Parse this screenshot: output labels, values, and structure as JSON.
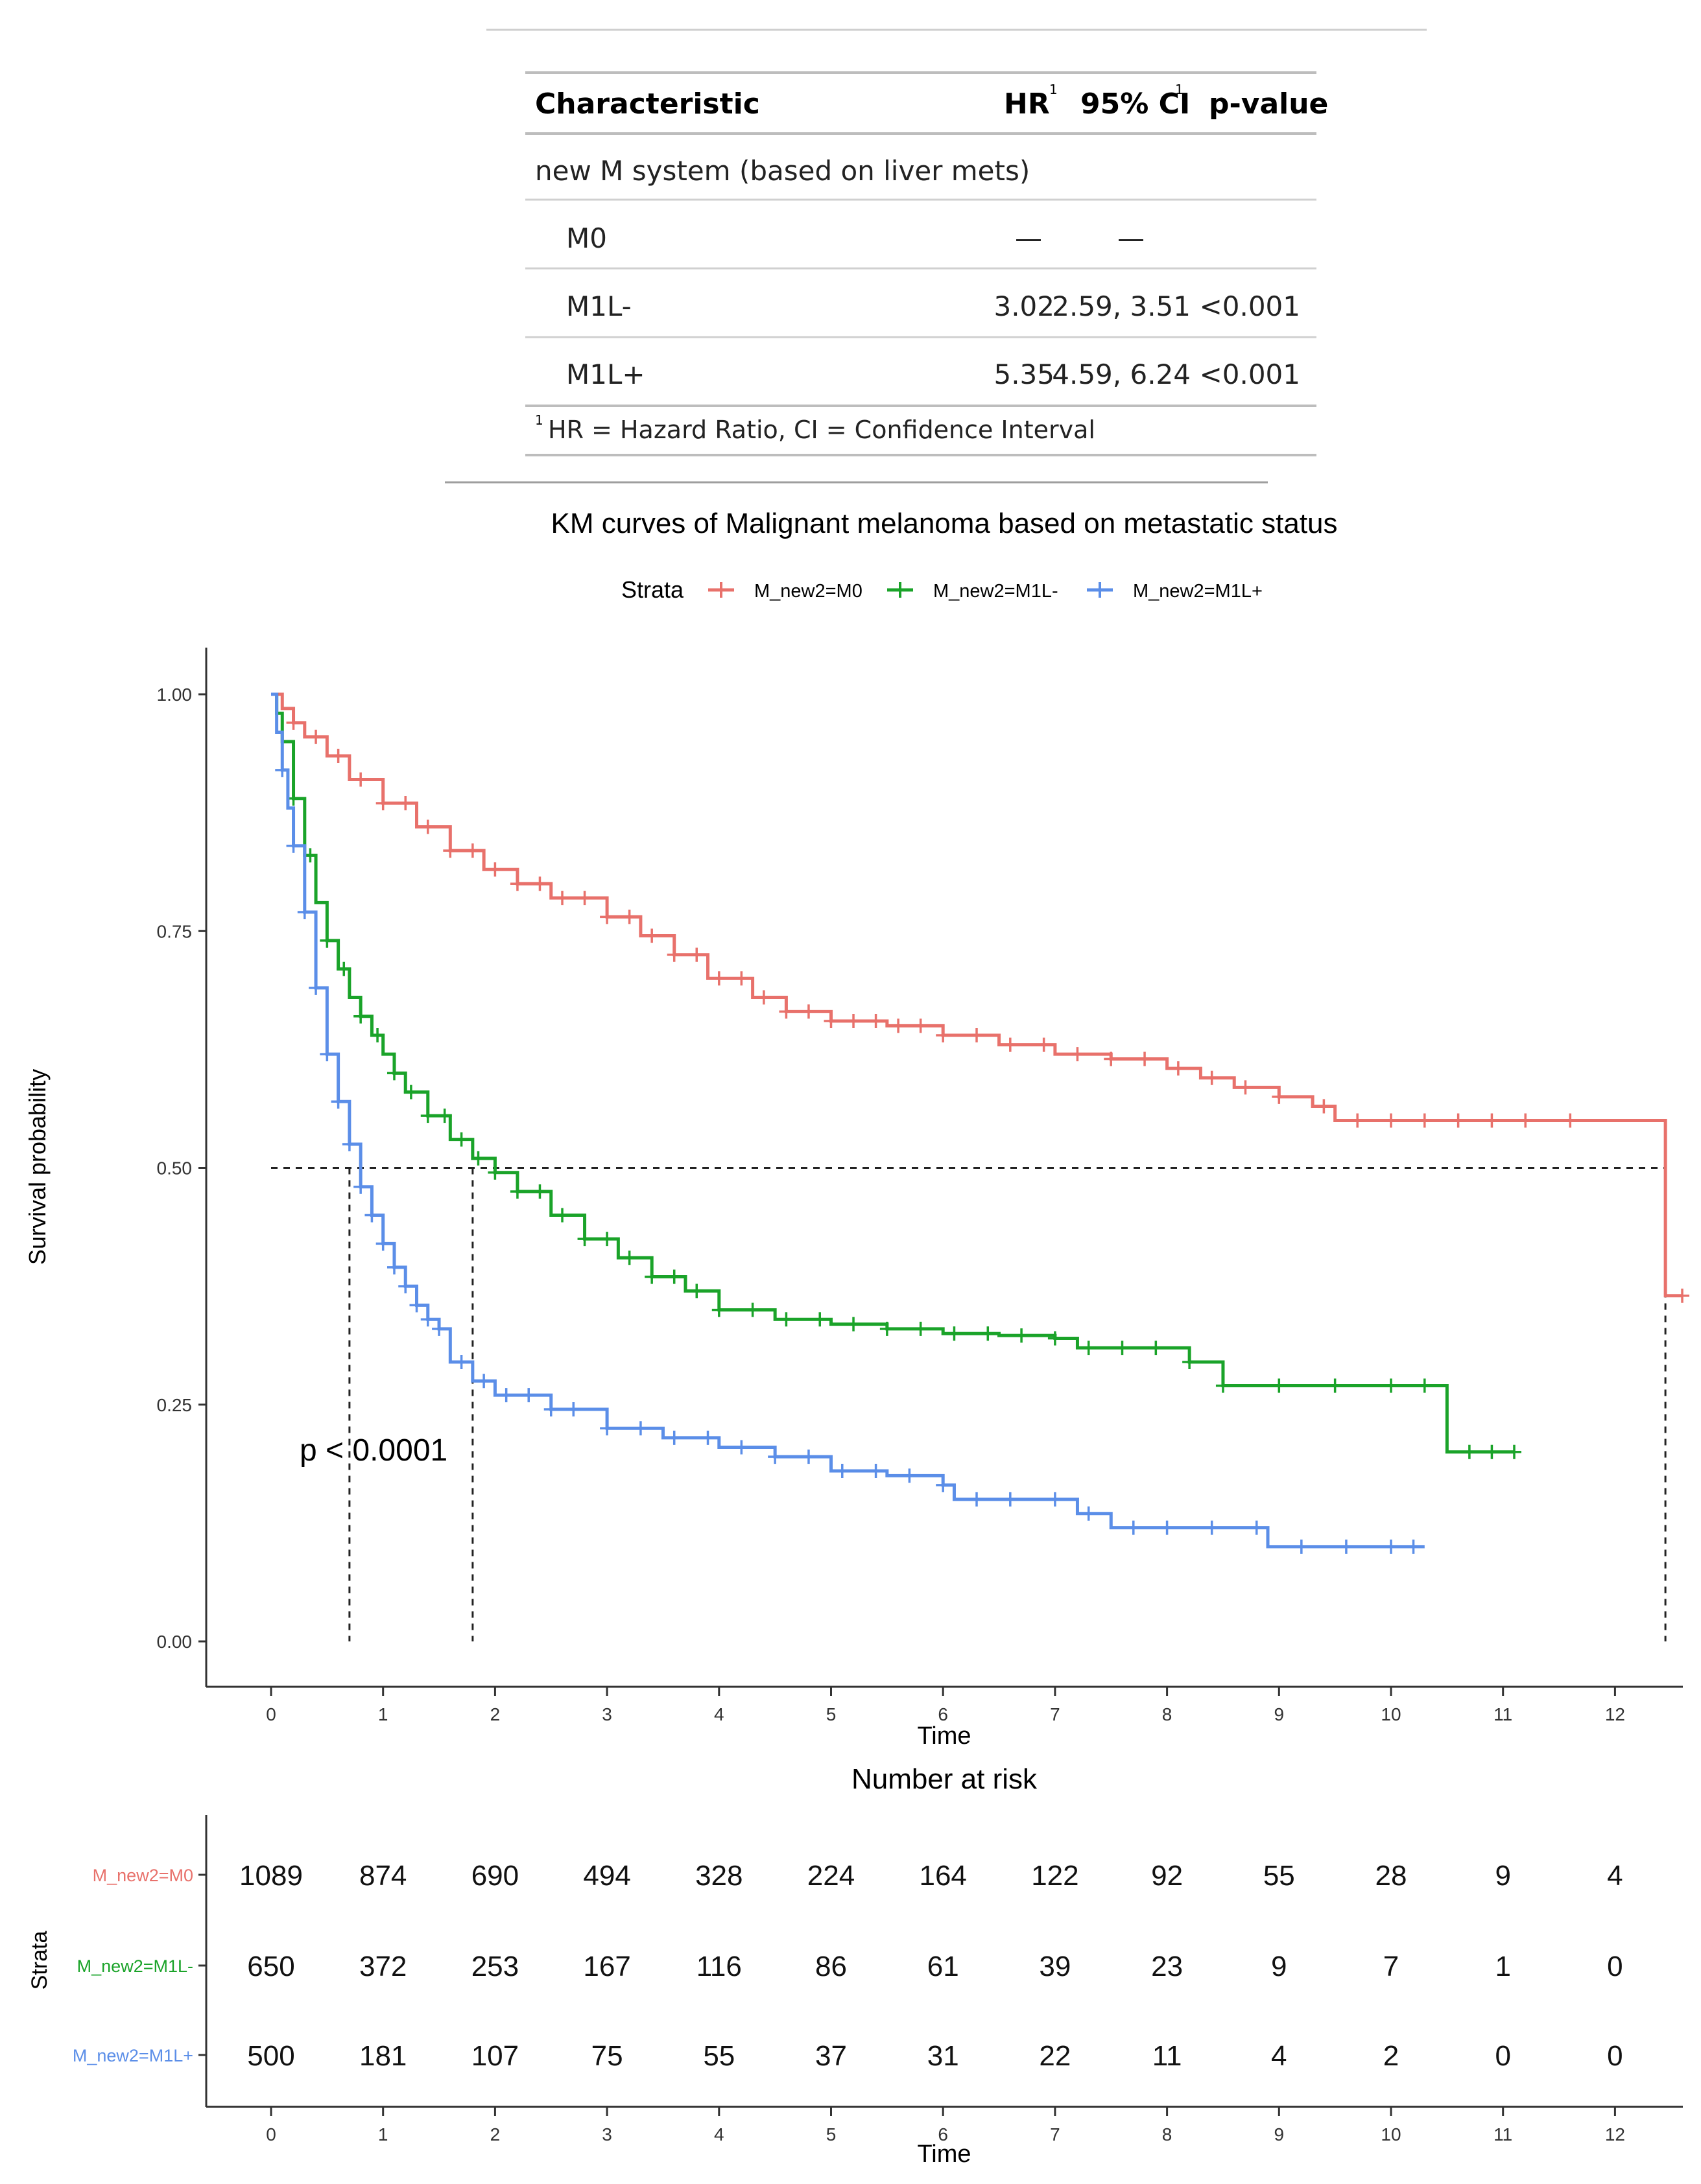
{
  "table": {
    "headers": {
      "characteristic": "Characteristic",
      "hr": "HR",
      "ci": "95% CI",
      "pvalue": "p-value",
      "footnote_mark": "1"
    },
    "group_label": "new M system (based on liver mets)",
    "rows": [
      {
        "label": "M0",
        "hr": "—",
        "ci": "—",
        "p": ""
      },
      {
        "label": "M1L-",
        "hr": "3.02",
        "ci": "2.59, 3.51",
        "p": "<0.001"
      },
      {
        "label": "M1L+",
        "hr": "5.35",
        "ci": "4.59, 6.24",
        "p": "<0.001"
      }
    ],
    "footnote": "HR = Hazard Ratio, CI = Confidence Interval"
  },
  "colors": {
    "M0": "#e8716b",
    "M1Lminus": "#1aa329",
    "M1Lplus": "#5b8ee8",
    "axis": "#333333",
    "grid_rule": "#bdbdbd"
  },
  "chart_data": [
    {
      "type": "line",
      "subtype": "kaplan-meier step",
      "title": "KM curves of Malignant melanoma based on metastatic status",
      "legend_title": "Strata",
      "legend_position": "top",
      "xlabel": "Time",
      "ylabel": "Survival probability",
      "xlim": [
        0,
        12.5
      ],
      "ylim": [
        0,
        1
      ],
      "xticks": [
        0,
        1,
        2,
        3,
        4,
        5,
        6,
        7,
        8,
        9,
        10,
        11,
        12
      ],
      "yticks": [
        0.0,
        0.25,
        0.5,
        0.75,
        1.0
      ],
      "ytick_labels": [
        "0.00",
        "0.25",
        "0.50",
        "0.75",
        "1.00"
      ],
      "annotation": "p < 0.0001",
      "median_line_y": 0.5,
      "medians": [
        0.7,
        1.8,
        12.45
      ],
      "series": [
        {
          "name": "M_new2=M0",
          "color": "#e8716b",
          "x": [
            0,
            0.1,
            0.2,
            0.3,
            0.5,
            0.7,
            1.0,
            1.3,
            1.6,
            1.9,
            2.2,
            2.5,
            3.0,
            3.3,
            3.6,
            3.9,
            4.3,
            4.6,
            5.0,
            5.5,
            6.0,
            6.5,
            7.0,
            7.5,
            8.0,
            8.3,
            8.6,
            9.0,
            9.3,
            9.5,
            10.0,
            11.0,
            12.0,
            12.45,
            12.6
          ],
          "y": [
            1.0,
            0.985,
            0.97,
            0.955,
            0.935,
            0.91,
            0.885,
            0.86,
            0.835,
            0.815,
            0.8,
            0.785,
            0.765,
            0.745,
            0.725,
            0.7,
            0.68,
            0.665,
            0.655,
            0.65,
            0.64,
            0.63,
            0.62,
            0.615,
            0.605,
            0.595,
            0.585,
            0.575,
            0.565,
            0.55,
            0.55,
            0.55,
            0.55,
            0.365,
            0.365
          ],
          "censor_x": [
            0.2,
            0.4,
            0.6,
            0.8,
            1.0,
            1.2,
            1.4,
            1.6,
            1.8,
            2.0,
            2.2,
            2.4,
            2.6,
            2.8,
            3.0,
            3.2,
            3.4,
            3.6,
            3.8,
            4.0,
            4.2,
            4.4,
            4.6,
            4.8,
            5.0,
            5.2,
            5.4,
            5.6,
            5.8,
            6.0,
            6.3,
            6.6,
            6.9,
            7.2,
            7.5,
            7.8,
            8.1,
            8.4,
            8.7,
            9.0,
            9.4,
            9.7,
            10.0,
            10.3,
            10.6,
            10.9,
            11.2,
            11.6,
            12.6
          ]
        },
        {
          "name": "M_new2=M1L-",
          "color": "#1aa329",
          "x": [
            0,
            0.05,
            0.1,
            0.2,
            0.3,
            0.4,
            0.5,
            0.6,
            0.7,
            0.8,
            0.9,
            1.0,
            1.1,
            1.2,
            1.4,
            1.6,
            1.8,
            2.0,
            2.2,
            2.5,
            2.8,
            3.1,
            3.4,
            3.7,
            4.0,
            4.5,
            5.0,
            5.5,
            6.0,
            6.5,
            7.0,
            7.2,
            8.2,
            8.5,
            10.5,
            11.1
          ],
          "y": [
            1.0,
            0.98,
            0.95,
            0.89,
            0.83,
            0.78,
            0.74,
            0.71,
            0.68,
            0.66,
            0.64,
            0.62,
            0.6,
            0.58,
            0.555,
            0.53,
            0.51,
            0.495,
            0.475,
            0.45,
            0.425,
            0.405,
            0.385,
            0.37,
            0.35,
            0.34,
            0.335,
            0.33,
            0.325,
            0.323,
            0.32,
            0.31,
            0.295,
            0.27,
            0.2,
            0.2
          ],
          "censor_x": [
            0.2,
            0.35,
            0.5,
            0.65,
            0.8,
            0.95,
            1.1,
            1.25,
            1.4,
            1.55,
            1.7,
            1.85,
            2.0,
            2.2,
            2.4,
            2.6,
            2.8,
            3.0,
            3.2,
            3.4,
            3.6,
            3.8,
            4.0,
            4.3,
            4.6,
            4.9,
            5.2,
            5.5,
            5.8,
            6.1,
            6.4,
            6.7,
            7.0,
            7.3,
            7.6,
            7.9,
            8.2,
            8.5,
            9.0,
            9.5,
            10.0,
            10.3,
            10.7,
            10.9,
            11.1
          ]
        },
        {
          "name": "M_new2=M1L+",
          "color": "#5b8ee8",
          "x": [
            0,
            0.05,
            0.1,
            0.15,
            0.2,
            0.3,
            0.4,
            0.5,
            0.6,
            0.7,
            0.8,
            0.9,
            1.0,
            1.1,
            1.2,
            1.3,
            1.4,
            1.5,
            1.6,
            1.8,
            2.0,
            2.5,
            3.0,
            3.5,
            4.0,
            4.5,
            5.0,
            5.5,
            6.0,
            6.1,
            7.2,
            7.5,
            8.9,
            10.3
          ],
          "y": [
            1.0,
            0.96,
            0.92,
            0.88,
            0.84,
            0.77,
            0.69,
            0.62,
            0.57,
            0.525,
            0.48,
            0.45,
            0.42,
            0.395,
            0.375,
            0.355,
            0.34,
            0.33,
            0.295,
            0.275,
            0.26,
            0.245,
            0.225,
            0.215,
            0.205,
            0.195,
            0.18,
            0.175,
            0.165,
            0.15,
            0.135,
            0.12,
            0.1,
            0.1
          ],
          "censor_x": [
            0.1,
            0.2,
            0.3,
            0.4,
            0.5,
            0.6,
            0.7,
            0.8,
            0.9,
            1.0,
            1.1,
            1.2,
            1.3,
            1.4,
            1.5,
            1.7,
            1.9,
            2.1,
            2.3,
            2.5,
            2.7,
            3.0,
            3.3,
            3.6,
            3.9,
            4.2,
            4.5,
            4.8,
            5.1,
            5.4,
            5.7,
            6.0,
            6.3,
            6.6,
            7.0,
            7.3,
            7.7,
            8.0,
            8.4,
            8.8,
            9.2,
            9.6,
            10.0,
            10.2
          ]
        }
      ]
    },
    {
      "type": "table",
      "title": "Number at risk",
      "xlabel": "Time",
      "ylabel": "Strata",
      "xticks": [
        0,
        1,
        2,
        3,
        4,
        5,
        6,
        7,
        8,
        9,
        10,
        11,
        12
      ],
      "rows": [
        {
          "name": "M_new2=M0",
          "color": "#e8716b",
          "values": [
            "1089",
            "874",
            "690",
            "494",
            "328",
            "224",
            "164",
            "122",
            "92",
            "55",
            "28",
            "9",
            "4"
          ]
        },
        {
          "name": "M_new2=M1L-",
          "color": "#1aa329",
          "values": [
            "650",
            "372",
            "253",
            "167",
            "116",
            "86",
            "61",
            "39",
            "23",
            "9",
            "7",
            "1",
            "0"
          ]
        },
        {
          "name": "M_new2=M1L+",
          "color": "#5b8ee8",
          "values": [
            "500",
            "181",
            "107",
            "75",
            "55",
            "37",
            "31",
            "22",
            "11",
            "4",
            "2",
            "0",
            "0"
          ]
        }
      ]
    }
  ]
}
